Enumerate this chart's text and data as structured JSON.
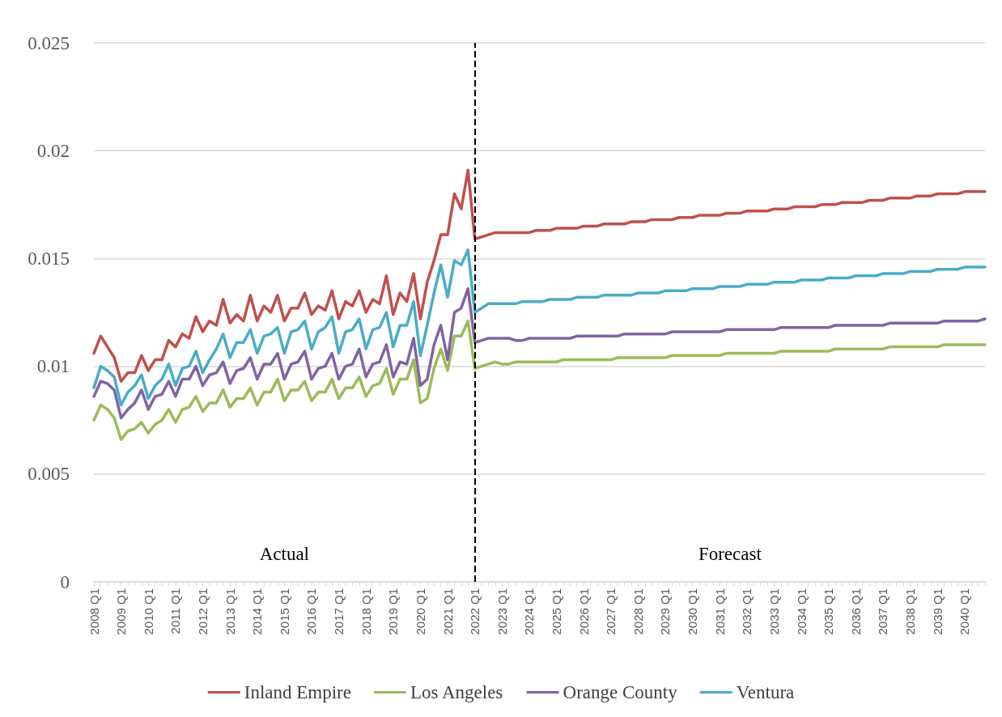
{
  "chart_data": {
    "type": "line",
    "categories": [
      "2008 Q1",
      null,
      null,
      null,
      "2009 Q1",
      null,
      null,
      null,
      "2010 Q1",
      null,
      null,
      null,
      "2011 Q1",
      null,
      null,
      null,
      "2012 Q1",
      null,
      null,
      null,
      "2013 Q1",
      null,
      null,
      null,
      "2014 Q1",
      null,
      null,
      null,
      "2015 Q1",
      null,
      null,
      null,
      "2016 Q1",
      null,
      null,
      null,
      "2017 Q1",
      null,
      null,
      null,
      "2018 Q1",
      null,
      null,
      null,
      "2019 Q1",
      null,
      null,
      null,
      "2020 Q1",
      null,
      null,
      null,
      "2021 Q1",
      null,
      null,
      null,
      "2022 Q1",
      null,
      null,
      null,
      "2023 Q1",
      null,
      null,
      null,
      "2024 Q1",
      null,
      null,
      null,
      "2025 Q1",
      null,
      null,
      null,
      "2026 Q1",
      null,
      null,
      null,
      "2027 Q1",
      null,
      null,
      null,
      "2028 Q1",
      null,
      null,
      null,
      "2029 Q1",
      null,
      null,
      null,
      "2030 Q1",
      null,
      null,
      null,
      "2031 Q1",
      null,
      null,
      null,
      "2032 Q1",
      null,
      null,
      null,
      "2033 Q1",
      null,
      null,
      null,
      "2034 Q1",
      null,
      null,
      null,
      "2035 Q1",
      null,
      null,
      null,
      "2036 Q1",
      null,
      null,
      null,
      "2037 Q1",
      null,
      null,
      null,
      "2038 Q1",
      null,
      null,
      null,
      "2039 Q1",
      null,
      null,
      null,
      "2040 Q1",
      null,
      null,
      null
    ],
    "series": [
      {
        "name": "Inland Empire",
        "color": "#c0504d",
        "values": [
          0.0106,
          0.0114,
          0.0109,
          0.0104,
          0.0093,
          0.0097,
          0.0097,
          0.0105,
          0.0098,
          0.0103,
          0.0103,
          0.0112,
          0.0109,
          0.0115,
          0.0113,
          0.0123,
          0.0116,
          0.0121,
          0.0119,
          0.0131,
          0.012,
          0.0124,
          0.0121,
          0.0133,
          0.0121,
          0.0128,
          0.0125,
          0.0133,
          0.0121,
          0.0127,
          0.0127,
          0.0134,
          0.0124,
          0.0128,
          0.0126,
          0.0135,
          0.0122,
          0.013,
          0.0128,
          0.0135,
          0.0125,
          0.0131,
          0.0129,
          0.0142,
          0.0124,
          0.0134,
          0.013,
          0.0143,
          0.0122,
          0.0139,
          0.0149,
          0.0161,
          0.0161,
          0.018,
          0.0173,
          0.0191,
          0.0159,
          0.016,
          0.0161,
          0.0162,
          0.0162,
          0.0162,
          0.0162,
          0.0162,
          0.0162,
          0.0163,
          0.0163,
          0.0163,
          0.0164,
          0.0164,
          0.0164,
          0.0164,
          0.0165,
          0.0165,
          0.0165,
          0.0166,
          0.0166,
          0.0166,
          0.0166,
          0.0167,
          0.0167,
          0.0167,
          0.0168,
          0.0168,
          0.0168,
          0.0168,
          0.0169,
          0.0169,
          0.0169,
          0.017,
          0.017,
          0.017,
          0.017,
          0.0171,
          0.0171,
          0.0171,
          0.0172,
          0.0172,
          0.0172,
          0.0172,
          0.0173,
          0.0173,
          0.0173,
          0.0174,
          0.0174,
          0.0174,
          0.0174,
          0.0175,
          0.0175,
          0.0175,
          0.0176,
          0.0176,
          0.0176,
          0.0176,
          0.0177,
          0.0177,
          0.0177,
          0.0178,
          0.0178,
          0.0178,
          0.0178,
          0.0179,
          0.0179,
          0.0179,
          0.018,
          0.018,
          0.018,
          0.018,
          0.0181,
          0.0181,
          0.0181,
          0.0181
        ]
      },
      {
        "name": "Los Angeles",
        "color": "#9bbb59",
        "values": [
          0.0075,
          0.0082,
          0.008,
          0.0076,
          0.0066,
          0.007,
          0.0071,
          0.0074,
          0.0069,
          0.0073,
          0.0075,
          0.008,
          0.0074,
          0.008,
          0.0081,
          0.0086,
          0.0079,
          0.0083,
          0.0083,
          0.0089,
          0.0081,
          0.0085,
          0.0085,
          0.009,
          0.0082,
          0.0088,
          0.0088,
          0.0094,
          0.0084,
          0.0089,
          0.0089,
          0.0093,
          0.0084,
          0.0088,
          0.0088,
          0.0094,
          0.0085,
          0.009,
          0.009,
          0.0095,
          0.0086,
          0.0091,
          0.0092,
          0.0099,
          0.0087,
          0.0094,
          0.0094,
          0.0103,
          0.0083,
          0.0085,
          0.0099,
          0.0108,
          0.0098,
          0.0114,
          0.0114,
          0.0121,
          0.0099,
          0.01,
          0.0101,
          0.0102,
          0.0101,
          0.0101,
          0.0102,
          0.0102,
          0.0102,
          0.0102,
          0.0102,
          0.0102,
          0.0102,
          0.0103,
          0.0103,
          0.0103,
          0.0103,
          0.0103,
          0.0103,
          0.0103,
          0.0103,
          0.0104,
          0.0104,
          0.0104,
          0.0104,
          0.0104,
          0.0104,
          0.0104,
          0.0104,
          0.0105,
          0.0105,
          0.0105,
          0.0105,
          0.0105,
          0.0105,
          0.0105,
          0.0105,
          0.0106,
          0.0106,
          0.0106,
          0.0106,
          0.0106,
          0.0106,
          0.0106,
          0.0106,
          0.0107,
          0.0107,
          0.0107,
          0.0107,
          0.0107,
          0.0107,
          0.0107,
          0.0107,
          0.0108,
          0.0108,
          0.0108,
          0.0108,
          0.0108,
          0.0108,
          0.0108,
          0.0108,
          0.0109,
          0.0109,
          0.0109,
          0.0109,
          0.0109,
          0.0109,
          0.0109,
          0.0109,
          0.011,
          0.011,
          0.011,
          0.011,
          0.011,
          0.011,
          0.011
        ]
      },
      {
        "name": "Orange County",
        "color": "#8064a2",
        "values": [
          0.0086,
          0.0093,
          0.0092,
          0.0089,
          0.0076,
          0.008,
          0.0083,
          0.0089,
          0.008,
          0.0086,
          0.0087,
          0.0093,
          0.0086,
          0.0094,
          0.0094,
          0.01,
          0.0091,
          0.0096,
          0.0097,
          0.0102,
          0.0092,
          0.0098,
          0.0099,
          0.0104,
          0.0094,
          0.0101,
          0.0101,
          0.0106,
          0.0094,
          0.0101,
          0.0102,
          0.0107,
          0.0094,
          0.0099,
          0.01,
          0.0106,
          0.0094,
          0.01,
          0.0101,
          0.0108,
          0.0095,
          0.0101,
          0.0102,
          0.011,
          0.0095,
          0.0102,
          0.0101,
          0.0113,
          0.0091,
          0.0094,
          0.011,
          0.0119,
          0.0103,
          0.0125,
          0.0127,
          0.0136,
          0.0111,
          0.0112,
          0.0113,
          0.0113,
          0.0113,
          0.0113,
          0.0112,
          0.0112,
          0.0113,
          0.0113,
          0.0113,
          0.0113,
          0.0113,
          0.0113,
          0.0113,
          0.0114,
          0.0114,
          0.0114,
          0.0114,
          0.0114,
          0.0114,
          0.0114,
          0.0115,
          0.0115,
          0.0115,
          0.0115,
          0.0115,
          0.0115,
          0.0115,
          0.0116,
          0.0116,
          0.0116,
          0.0116,
          0.0116,
          0.0116,
          0.0116,
          0.0116,
          0.0117,
          0.0117,
          0.0117,
          0.0117,
          0.0117,
          0.0117,
          0.0117,
          0.0117,
          0.0118,
          0.0118,
          0.0118,
          0.0118,
          0.0118,
          0.0118,
          0.0118,
          0.0118,
          0.0119,
          0.0119,
          0.0119,
          0.0119,
          0.0119,
          0.0119,
          0.0119,
          0.0119,
          0.012,
          0.012,
          0.012,
          0.012,
          0.012,
          0.012,
          0.012,
          0.012,
          0.0121,
          0.0121,
          0.0121,
          0.0121,
          0.0121,
          0.0121,
          0.0122
        ]
      },
      {
        "name": "Ventura",
        "color": "#4bacc6",
        "values": [
          0.009,
          0.01,
          0.0098,
          0.0095,
          0.0082,
          0.0088,
          0.0091,
          0.0096,
          0.0085,
          0.0091,
          0.0094,
          0.0101,
          0.0091,
          0.0099,
          0.01,
          0.0107,
          0.0097,
          0.0103,
          0.0108,
          0.0115,
          0.0104,
          0.0111,
          0.0111,
          0.0117,
          0.0106,
          0.0114,
          0.0115,
          0.0118,
          0.0106,
          0.0116,
          0.0117,
          0.0121,
          0.0108,
          0.0116,
          0.0118,
          0.0123,
          0.0106,
          0.0116,
          0.0117,
          0.0122,
          0.0108,
          0.0117,
          0.0118,
          0.0125,
          0.0109,
          0.0119,
          0.0119,
          0.013,
          0.0105,
          0.0119,
          0.0134,
          0.0147,
          0.0132,
          0.0149,
          0.0147,
          0.0154,
          0.0125,
          0.0127,
          0.0129,
          0.0129,
          0.0129,
          0.0129,
          0.0129,
          0.013,
          0.013,
          0.013,
          0.013,
          0.0131,
          0.0131,
          0.0131,
          0.0131,
          0.0132,
          0.0132,
          0.0132,
          0.0132,
          0.0133,
          0.0133,
          0.0133,
          0.0133,
          0.0133,
          0.0134,
          0.0134,
          0.0134,
          0.0134,
          0.0135,
          0.0135,
          0.0135,
          0.0135,
          0.0136,
          0.0136,
          0.0136,
          0.0136,
          0.0137,
          0.0137,
          0.0137,
          0.0137,
          0.0138,
          0.0138,
          0.0138,
          0.0138,
          0.0139,
          0.0139,
          0.0139,
          0.0139,
          0.014,
          0.014,
          0.014,
          0.014,
          0.0141,
          0.0141,
          0.0141,
          0.0141,
          0.0142,
          0.0142,
          0.0142,
          0.0142,
          0.0143,
          0.0143,
          0.0143,
          0.0143,
          0.0144,
          0.0144,
          0.0144,
          0.0144,
          0.0145,
          0.0145,
          0.0145,
          0.0145,
          0.0146,
          0.0146,
          0.0146,
          0.0146
        ]
      }
    ],
    "ylim": [
      0,
      0.025
    ],
    "yticks": [
      0,
      0.005,
      0.01,
      0.015,
      0.02,
      0.025
    ],
    "grid": "y",
    "legend": "bottom",
    "marker": "none",
    "line_style": "solid",
    "ref_lines": [
      {
        "axis": "x",
        "value": "2022 Q1",
        "color": "#000000",
        "line_style": "dashed"
      }
    ],
    "annotations": [
      "Actual",
      "Forecast"
    ]
  }
}
